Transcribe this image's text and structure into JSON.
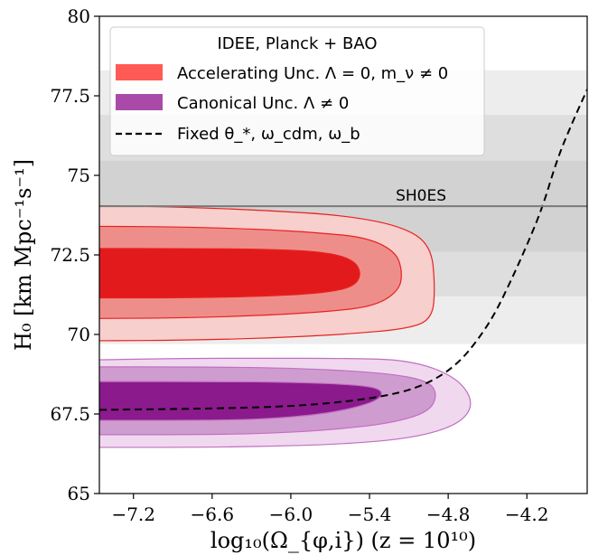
{
  "chart_data": {
    "type": "contour",
    "xlabel": "log₁₀(Ω_{φ,i})  (z = 10¹⁰)",
    "ylabel": "H₀ [km Mpc⁻¹s⁻¹]",
    "xlim": [
      -7.46,
      -3.74
    ],
    "ylim": [
      65,
      80
    ],
    "xticks": [
      -7.2,
      -6.6,
      -6.0,
      -5.4,
      -4.8,
      -4.2
    ],
    "xtick_labels": [
      "−7.2",
      "−6.6",
      "−6.0",
      "−5.4",
      "−4.8",
      "−4.2"
    ],
    "yticks": [
      65,
      67.5,
      70,
      72.5,
      75,
      77.5,
      80
    ],
    "ytick_labels": [
      "65",
      "67.5",
      "70",
      "72.5",
      "75",
      "77.5",
      "80"
    ],
    "legend": {
      "title": "IDEE, Planck + BAO",
      "position": "upper-left",
      "entries": [
        {
          "label": "Accelerating Unc. Λ = 0, m_ν ≠ 0",
          "color": "#ff5a55",
          "style": "patch"
        },
        {
          "label": "Canonical Unc. Λ ≠ 0",
          "color": "#a94aa8",
          "style": "patch"
        },
        {
          "label": "Fixed θ_*, ω_cdm, ω_b",
          "color": "#000000",
          "style": "dashed"
        }
      ]
    },
    "shoes_band": {
      "label": "SH0ES",
      "central": 74.03,
      "bands_1_2_3_sigma": [
        [
          72.6,
          75.46
        ],
        [
          71.2,
          76.9
        ],
        [
          69.7,
          78.3
        ]
      ],
      "color": "#9e9e9e"
    },
    "series": [
      {
        "name": "Accelerating Unc. Λ = 0, m_ν ≠ 0",
        "color": "#e8211e",
        "contours": [
          {
            "level": "1σ",
            "fill": "#e31a1c",
            "points": [
              [
                -7.46,
                71.15
              ],
              [
                -6.8,
                71.15
              ],
              [
                -6.2,
                71.2
              ],
              [
                -5.75,
                71.3
              ],
              [
                -5.52,
                71.5
              ],
              [
                -5.46,
                71.9
              ],
              [
                -5.52,
                72.35
              ],
              [
                -5.75,
                72.6
              ],
              [
                -6.2,
                72.68
              ],
              [
                -6.8,
                72.7
              ],
              [
                -7.46,
                72.7
              ]
            ]
          },
          {
            "level": "2σ",
            "fill": "#ee8e8a",
            "points": [
              [
                -7.46,
                70.5
              ],
              [
                -6.8,
                70.52
              ],
              [
                -6.2,
                70.6
              ],
              [
                -5.7,
                70.72
              ],
              [
                -5.35,
                70.9
              ],
              [
                -5.17,
                71.4
              ],
              [
                -5.15,
                72.0
              ],
              [
                -5.2,
                72.6
              ],
              [
                -5.42,
                73.05
              ],
              [
                -5.8,
                73.2
              ],
              [
                -6.2,
                73.3
              ],
              [
                -6.8,
                73.38
              ],
              [
                -7.46,
                73.4
              ]
            ]
          },
          {
            "level": "3σ",
            "fill": "#f7cfcd",
            "points": [
              [
                -7.46,
                69.8
              ],
              [
                -6.8,
                69.82
              ],
              [
                -6.2,
                69.88
              ],
              [
                -5.6,
                70.0
              ],
              [
                -5.1,
                70.18
              ],
              [
                -4.92,
                70.5
              ],
              [
                -4.9,
                71.5
              ],
              [
                -4.93,
                72.8
              ],
              [
                -5.15,
                73.4
              ],
              [
                -5.6,
                73.75
              ],
              [
                -6.2,
                73.9
              ],
              [
                -6.8,
                74.0
              ],
              [
                -7.46,
                74.05
              ]
            ]
          }
        ]
      },
      {
        "name": "Canonical Unc. Λ ≠ 0",
        "color": "#c070c0",
        "contours": [
          {
            "level": "1σ",
            "fill": "#8b1a8c",
            "points": [
              [
                -7.46,
                67.3
              ],
              [
                -6.8,
                67.3
              ],
              [
                -6.3,
                67.32
              ],
              [
                -5.85,
                67.45
              ],
              [
                -5.55,
                67.65
              ],
              [
                -5.32,
                67.95
              ],
              [
                -5.3,
                68.28
              ],
              [
                -5.5,
                68.42
              ],
              [
                -6.0,
                68.5
              ],
              [
                -6.6,
                68.52
              ],
              [
                -7.46,
                68.52
              ]
            ]
          },
          {
            "level": "2σ",
            "fill": "#cf9ccf",
            "points": [
              [
                -7.46,
                66.85
              ],
              [
                -6.8,
                66.85
              ],
              [
                -6.2,
                66.88
              ],
              [
                -5.7,
                67.0
              ],
              [
                -5.25,
                67.2
              ],
              [
                -4.95,
                67.55
              ],
              [
                -4.88,
                68.1
              ],
              [
                -4.95,
                68.55
              ],
              [
                -5.3,
                68.8
              ],
              [
                -6.0,
                68.95
              ],
              [
                -6.8,
                68.98
              ],
              [
                -7.46,
                68.98
              ]
            ]
          },
          {
            "level": "3σ",
            "fill": "#f0d8ef",
            "points": [
              [
                -7.46,
                66.45
              ],
              [
                -6.8,
                66.45
              ],
              [
                -6.2,
                66.48
              ],
              [
                -5.6,
                66.55
              ],
              [
                -5.05,
                66.75
              ],
              [
                -4.7,
                67.2
              ],
              [
                -4.6,
                67.9
              ],
              [
                -4.75,
                68.7
              ],
              [
                -5.1,
                69.2
              ],
              [
                -5.6,
                69.25
              ],
              [
                -6.2,
                69.25
              ],
              [
                -6.8,
                69.25
              ],
              [
                -7.46,
                69.2
              ]
            ]
          }
        ]
      },
      {
        "name": "Fixed θ_*, ω_cdm, ω_b",
        "style": "dashed",
        "color": "#000000",
        "points": [
          [
            -7.46,
            67.63
          ],
          [
            -7.0,
            67.65
          ],
          [
            -6.5,
            67.68
          ],
          [
            -6.0,
            67.74
          ],
          [
            -5.6,
            67.88
          ],
          [
            -5.3,
            68.05
          ],
          [
            -5.05,
            68.3
          ],
          [
            -4.85,
            68.7
          ],
          [
            -4.7,
            69.2
          ],
          [
            -4.58,
            69.8
          ],
          [
            -4.45,
            70.6
          ],
          [
            -4.32,
            71.7
          ],
          [
            -4.2,
            72.8
          ],
          [
            -4.08,
            74.0
          ],
          [
            -3.97,
            75.5
          ],
          [
            -3.86,
            76.6
          ],
          [
            -3.74,
            77.7
          ]
        ]
      }
    ]
  }
}
